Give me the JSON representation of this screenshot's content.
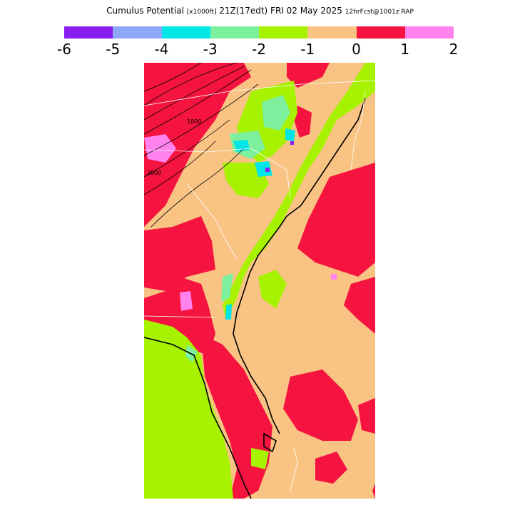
{
  "title": {
    "main": "Cumulus Potential",
    "units": "[x1000ft]",
    "time": "21Z(17edt) FRI 02 May 2025",
    "forecast": "12hrFcst@1001z RAP"
  },
  "legend": {
    "colors": [
      "#8a1ef0",
      "#8ca6f8",
      "#00e5e5",
      "#7cf09c",
      "#a6f200",
      "#f8c383",
      "#f5133f",
      "#ff82ee"
    ],
    "tick_labels": [
      "-6",
      "-5",
      "-4",
      "-3",
      "-2",
      "-1",
      "0",
      "1",
      "2"
    ]
  },
  "map": {
    "contour_labels": [
      "2000",
      "1000"
    ]
  }
}
